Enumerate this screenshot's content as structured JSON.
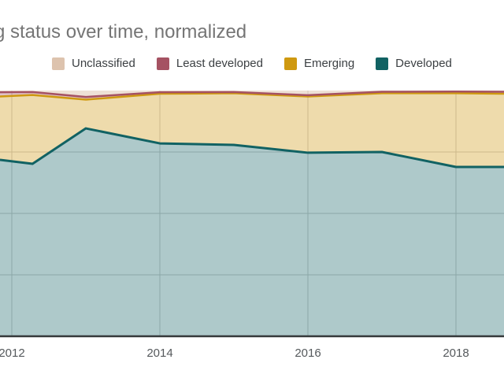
{
  "title": "g status over time, normalized",
  "colors": {
    "background": "#ffffff",
    "gridline": "#cccccc",
    "axis_line": "#35393a",
    "title_text": "#757575",
    "legend_text": "#3c4043",
    "axis_label_text": "#55595c",
    "developed": "#116263",
    "emerging": "#cf9910",
    "least_developed": "#a55262",
    "unclassified": "#ddc3ae"
  },
  "legend": [
    {
      "label": "Unclassified",
      "color": "#ddc3ae"
    },
    {
      "label": "Least developed",
      "color": "#a55262"
    },
    {
      "label": "Emerging",
      "color": "#cf9910"
    },
    {
      "label": "Developed",
      "color": "#116263"
    }
  ],
  "chart_data": {
    "type": "area",
    "stacked": true,
    "normalized_percent": true,
    "title": "g status over time, normalized",
    "legend_position": "top",
    "grid": true,
    "ylim": [
      0,
      100
    ],
    "y_gridlines_pct": [
      25,
      50,
      75
    ],
    "x": [
      2011.84,
      2012.28,
      2013,
      2014,
      2015,
      2016,
      2017,
      2018,
      2018.66
    ],
    "x_ticks": [
      {
        "label": "2012",
        "year": 2012
      },
      {
        "label": "2014",
        "year": 2014
      },
      {
        "label": "2016",
        "year": 2016
      },
      {
        "label": "2018",
        "year": 2018
      }
    ],
    "series": [
      {
        "id": "developed",
        "name": "Developed",
        "line": "#116263",
        "line_width": 3,
        "fill": "rgba(17,98,99,0.34)",
        "values": [
          71.8,
          70.2,
          84.6,
          78.5,
          77.9,
          74.7,
          75.0,
          68.9,
          68.9
        ]
      },
      {
        "id": "emerging",
        "name": "Emerging",
        "line": "#cf9910",
        "line_width": 2.5,
        "fill": "rgba(207,153,16,0.35)",
        "values": [
          25.8,
          28.0,
          11.7,
          20.2,
          21.0,
          22.9,
          23.9,
          30.0,
          29.8
        ]
      },
      {
        "id": "least_developed",
        "name": "Least developed",
        "line": "#a55262",
        "line_width": 2.5,
        "fill": "rgba(165,82,98,0.35)",
        "values": [
          1.7,
          1.2,
          1.1,
          0.6,
          0.5,
          0.5,
          0.6,
          0.7,
          0.8
        ]
      },
      {
        "id": "unclassified",
        "name": "Unclassified",
        "line": null,
        "line_width": 0,
        "fill": "rgba(221,195,174,0.5)",
        "values": [
          0.7,
          0.6,
          2.6,
          0.7,
          0.6,
          1.9,
          0.5,
          0.4,
          0.5
        ]
      }
    ]
  }
}
